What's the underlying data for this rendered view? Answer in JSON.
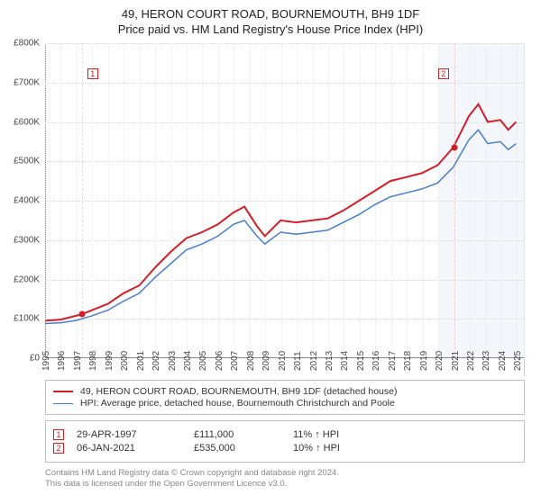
{
  "title": {
    "line1": "49, HERON COURT ROAD, BOURNEMOUTH, BH9 1DF",
    "line2": "Price paid vs. HM Land Registry's House Price Index (HPI)"
  },
  "chart": {
    "type": "line",
    "background_color": "#ffffff",
    "grid_color": "#d8d8d8",
    "grid_color_v": "#e8e8e8",
    "axis_color": "#888888",
    "x_years": [
      "1995",
      "1996",
      "1997",
      "1998",
      "1999",
      "2000",
      "2001",
      "2002",
      "2003",
      "2004",
      "2005",
      "2006",
      "2007",
      "2008",
      "2009",
      "2010",
      "2011",
      "2012",
      "2013",
      "2014",
      "2015",
      "2016",
      "2017",
      "2018",
      "2019",
      "2020",
      "2021",
      "2022",
      "2023",
      "2024",
      "2025"
    ],
    "xlim": [
      1995,
      2025.5
    ],
    "ylim": [
      0,
      800000
    ],
    "ytick_step": 100000,
    "y_ticks": [
      "£0",
      "£100K",
      "£200K",
      "£300K",
      "£400K",
      "£500K",
      "£600K",
      "£700K",
      "£800K"
    ],
    "shade_region": {
      "from": 2020.0,
      "to": 2025.5,
      "color": "#eef4fb"
    },
    "series": [
      {
        "name": "property",
        "label": "49, HERON COURT ROAD, BOURNEMOUTH, BH9 1DF (detached house)",
        "color": "#d11f2a",
        "line_width": 2,
        "points": [
          [
            1995.0,
            95000
          ],
          [
            1996.0,
            98000
          ],
          [
            1997.3,
            111000
          ],
          [
            1998.0,
            122000
          ],
          [
            1999.0,
            138000
          ],
          [
            2000.0,
            165000
          ],
          [
            2001.0,
            185000
          ],
          [
            2002.0,
            230000
          ],
          [
            2003.0,
            270000
          ],
          [
            2004.0,
            305000
          ],
          [
            2005.0,
            320000
          ],
          [
            2006.0,
            340000
          ],
          [
            2007.0,
            370000
          ],
          [
            2007.7,
            385000
          ],
          [
            2008.5,
            335000
          ],
          [
            2009.0,
            310000
          ],
          [
            2010.0,
            350000
          ],
          [
            2011.0,
            345000
          ],
          [
            2012.0,
            350000
          ],
          [
            2013.0,
            355000
          ],
          [
            2014.0,
            375000
          ],
          [
            2015.0,
            400000
          ],
          [
            2016.0,
            425000
          ],
          [
            2017.0,
            450000
          ],
          [
            2018.0,
            460000
          ],
          [
            2019.0,
            470000
          ],
          [
            2020.0,
            490000
          ],
          [
            2021.0,
            535000
          ],
          [
            2022.0,
            615000
          ],
          [
            2022.6,
            645000
          ],
          [
            2023.2,
            600000
          ],
          [
            2024.0,
            605000
          ],
          [
            2024.5,
            580000
          ],
          [
            2025.0,
            600000
          ]
        ]
      },
      {
        "name": "hpi",
        "label": "HPI: Average price, detached house, Bournemouth Christchurch and Poole",
        "color": "#4a7fc8",
        "line_width": 1.5,
        "points": [
          [
            1995.0,
            88000
          ],
          [
            1996.0,
            90000
          ],
          [
            1997.0,
            96000
          ],
          [
            1998.0,
            108000
          ],
          [
            1999.0,
            122000
          ],
          [
            2000.0,
            145000
          ],
          [
            2001.0,
            165000
          ],
          [
            2002.0,
            205000
          ],
          [
            2003.0,
            240000
          ],
          [
            2004.0,
            275000
          ],
          [
            2005.0,
            290000
          ],
          [
            2006.0,
            310000
          ],
          [
            2007.0,
            340000
          ],
          [
            2007.7,
            350000
          ],
          [
            2008.5,
            310000
          ],
          [
            2009.0,
            290000
          ],
          [
            2010.0,
            320000
          ],
          [
            2011.0,
            315000
          ],
          [
            2012.0,
            320000
          ],
          [
            2013.0,
            325000
          ],
          [
            2014.0,
            345000
          ],
          [
            2015.0,
            365000
          ],
          [
            2016.0,
            390000
          ],
          [
            2017.0,
            410000
          ],
          [
            2018.0,
            420000
          ],
          [
            2019.0,
            430000
          ],
          [
            2020.0,
            445000
          ],
          [
            2021.0,
            485000
          ],
          [
            2022.0,
            555000
          ],
          [
            2022.6,
            580000
          ],
          [
            2023.2,
            545000
          ],
          [
            2024.0,
            550000
          ],
          [
            2024.5,
            530000
          ],
          [
            2025.0,
            545000
          ]
        ]
      }
    ],
    "markers": [
      {
        "n": "1",
        "x": 1997.33,
        "y": 111000,
        "line_color": "#f0b8b8",
        "box_top": 105,
        "box_left_offset": 10
      },
      {
        "n": "2",
        "x": 2021.02,
        "y": 535000,
        "line_color": "#f0b8b8",
        "box_top": 105,
        "box_left_offset": 10
      }
    ],
    "dot_color": "#d11f2a"
  },
  "legend": {
    "rows": [
      {
        "color": "#d11f2a",
        "width": 2,
        "text": "49, HERON COURT ROAD, BOURNEMOUTH, BH9 1DF (detached house)"
      },
      {
        "color": "#4a7fc8",
        "width": 1.5,
        "text": "HPI: Average price, detached house, Bournemouth Christchurch and Poole"
      }
    ]
  },
  "sales": [
    {
      "n": "1",
      "date": "29-APR-1997",
      "price": "£111,000",
      "pct": "11% ↑ HPI"
    },
    {
      "n": "2",
      "date": "06-JAN-2021",
      "price": "£535,000",
      "pct": "10% ↑ HPI"
    }
  ],
  "footer": {
    "line1": "Contains HM Land Registry data © Crown copyright and database right 2024.",
    "line2": "This data is licensed under the Open Government Licence v3.0."
  }
}
